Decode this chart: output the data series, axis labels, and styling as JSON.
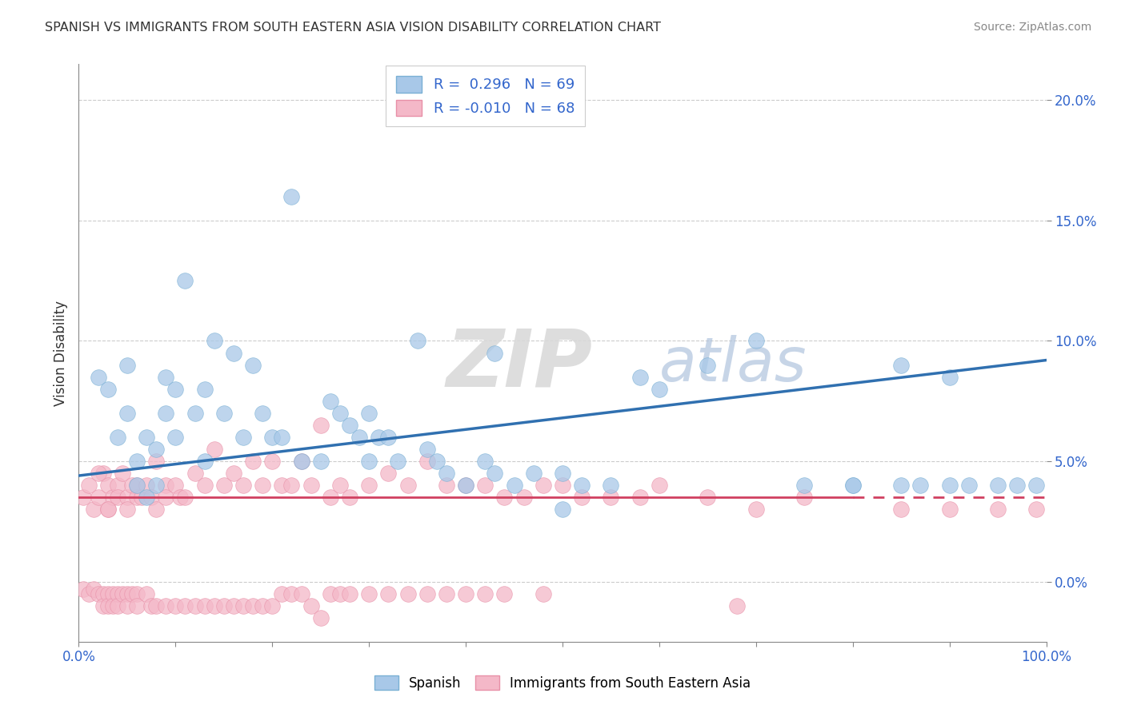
{
  "title": "SPANISH VS IMMIGRANTS FROM SOUTH EASTERN ASIA VISION DISABILITY CORRELATION CHART",
  "source": "Source: ZipAtlas.com",
  "ylabel": "Vision Disability",
  "xlim": [
    0,
    100
  ],
  "ylim": [
    -2.5,
    21.5
  ],
  "yticks": [
    0,
    5,
    10,
    15,
    20
  ],
  "ytick_labels": [
    "0.0%",
    "5.0%",
    "10.0%",
    "15.0%",
    "20.0%"
  ],
  "blue_R": 0.296,
  "blue_N": 69,
  "pink_R": -0.01,
  "pink_N": 68,
  "blue_color": "#a8c8e8",
  "blue_edge_color": "#7ab0d4",
  "pink_color": "#f4b8c8",
  "pink_edge_color": "#e890a8",
  "blue_line_color": "#3070b0",
  "pink_line_color": "#d04060",
  "legend_label_blue": "Spanish",
  "legend_label_pink": "Immigrants from South Eastern Asia",
  "watermark": "ZIPatlas",
  "background_color": "#ffffff",
  "grid_color": "#cccccc",
  "blue_line_x0": 0,
  "blue_line_y0": 4.4,
  "blue_line_x1": 100,
  "blue_line_y1": 9.2,
  "pink_line_y": 3.5,
  "pink_solid_end": 80,
  "blue_scatter_x": [
    2,
    3,
    4,
    5,
    5,
    6,
    6,
    7,
    7,
    8,
    8,
    9,
    9,
    10,
    10,
    11,
    12,
    13,
    13,
    14,
    15,
    16,
    17,
    18,
    19,
    20,
    21,
    22,
    23,
    25,
    26,
    27,
    28,
    29,
    30,
    31,
    32,
    33,
    35,
    36,
    37,
    38,
    40,
    42,
    43,
    45,
    47,
    50,
    52,
    55,
    58,
    60,
    65,
    70,
    75,
    80,
    85,
    87,
    90,
    92,
    95,
    97,
    99,
    30,
    43,
    50,
    80,
    85,
    90
  ],
  "blue_scatter_y": [
    8.5,
    8.0,
    6.0,
    9.0,
    7.0,
    5.0,
    4.0,
    6.0,
    3.5,
    5.5,
    4.0,
    8.5,
    7.0,
    8.0,
    6.0,
    12.5,
    7.0,
    8.0,
    5.0,
    10.0,
    7.0,
    9.5,
    6.0,
    9.0,
    7.0,
    6.0,
    6.0,
    16.0,
    5.0,
    5.0,
    7.5,
    7.0,
    6.5,
    6.0,
    7.0,
    6.0,
    6.0,
    5.0,
    10.0,
    5.5,
    5.0,
    4.5,
    4.0,
    5.0,
    9.5,
    4.0,
    4.5,
    3.0,
    4.0,
    4.0,
    8.5,
    8.0,
    9.0,
    10.0,
    4.0,
    4.0,
    9.0,
    4.0,
    8.5,
    4.0,
    4.0,
    4.0,
    4.0,
    5.0,
    4.5,
    4.5,
    4.0,
    4.0,
    4.0
  ],
  "pink_scatter_x": [
    0.5,
    1.0,
    1.5,
    2.0,
    2.5,
    3.0,
    3.0,
    3.5,
    4.0,
    4.0,
    4.5,
    5.0,
    5.0,
    5.5,
    6.0,
    6.0,
    6.5,
    7.0,
    7.5,
    8.0,
    8.0,
    9.0,
    9.0,
    10.0,
    10.5,
    11.0,
    12.0,
    13.0,
    14.0,
    15.0,
    16.0,
    17.0,
    18.0,
    19.0,
    20.0,
    21.0,
    22.0,
    23.0,
    24.0,
    25.0,
    26.0,
    27.0,
    28.0,
    30.0,
    32.0,
    34.0,
    36.0,
    38.0,
    40.0,
    42.0,
    44.0,
    46.0,
    48.0,
    50.0,
    52.0,
    55.0,
    58.0,
    60.0,
    65.0,
    70.0,
    75.0,
    85.0,
    90.0,
    95.0,
    99.0,
    2.0,
    3.0,
    68.0
  ],
  "pink_scatter_y": [
    3.5,
    4.0,
    3.0,
    3.5,
    4.5,
    4.0,
    3.0,
    3.5,
    4.0,
    3.5,
    4.5,
    3.5,
    3.0,
    4.0,
    3.5,
    4.0,
    3.5,
    4.0,
    3.5,
    5.0,
    3.0,
    4.0,
    3.5,
    4.0,
    3.5,
    3.5,
    4.5,
    4.0,
    5.5,
    4.0,
    4.5,
    4.0,
    5.0,
    4.0,
    5.0,
    4.0,
    4.0,
    5.0,
    4.0,
    6.5,
    3.5,
    4.0,
    3.5,
    4.0,
    4.5,
    4.0,
    5.0,
    4.0,
    4.0,
    4.0,
    3.5,
    3.5,
    4.0,
    4.0,
    3.5,
    3.5,
    3.5,
    4.0,
    3.5,
    3.0,
    3.5,
    3.0,
    3.0,
    3.0,
    3.0,
    4.5,
    3.0,
    -1.0
  ],
  "pink_below_x": [
    0.5,
    1.0,
    1.5,
    2.0,
    2.5,
    2.5,
    3.0,
    3.0,
    3.5,
    3.5,
    4.0,
    4.0,
    4.5,
    5.0,
    5.0,
    5.5,
    6.0,
    6.0,
    7.0,
    7.5,
    8.0,
    9.0,
    10.0,
    11.0,
    12.0,
    13.0,
    14.0,
    15.0,
    16.0,
    17.0,
    18.0,
    19.0,
    20.0,
    21.0,
    22.0,
    23.0,
    24.0,
    25.0,
    26.0,
    27.0,
    28.0,
    30.0,
    32.0,
    34.0,
    36.0,
    38.0,
    40.0,
    42.0,
    44.0,
    48.0
  ],
  "pink_below_y": [
    -0.3,
    -0.5,
    -0.3,
    -0.5,
    -0.5,
    -1.0,
    -0.5,
    -1.0,
    -0.5,
    -1.0,
    -0.5,
    -1.0,
    -0.5,
    -0.5,
    -1.0,
    -0.5,
    -0.5,
    -1.0,
    -0.5,
    -1.0,
    -1.0,
    -1.0,
    -1.0,
    -1.0,
    -1.0,
    -1.0,
    -1.0,
    -1.0,
    -1.0,
    -1.0,
    -1.0,
    -1.0,
    -1.0,
    -0.5,
    -0.5,
    -0.5,
    -1.0,
    -1.5,
    -0.5,
    -0.5,
    -0.5,
    -0.5,
    -0.5,
    -0.5,
    -0.5,
    -0.5,
    -0.5,
    -0.5,
    -0.5,
    -0.5
  ]
}
